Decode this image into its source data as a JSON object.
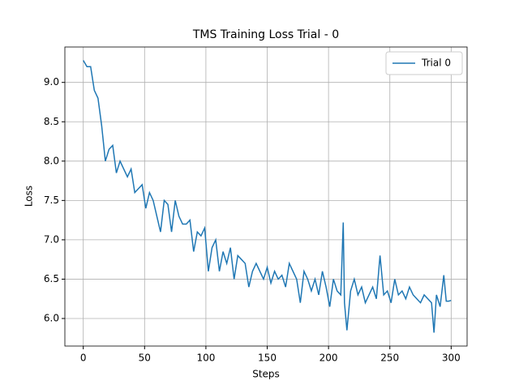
{
  "chart_data": {
    "type": "line",
    "title": "TMS Training Loss Trial - 0",
    "xlabel": "Steps",
    "ylabel": "Loss",
    "x": [
      0,
      3,
      6,
      9,
      12,
      15,
      18,
      21,
      24,
      27,
      30,
      33,
      36,
      39,
      42,
      45,
      48,
      51,
      54,
      57,
      60,
      63,
      66,
      69,
      72,
      75,
      78,
      81,
      84,
      87,
      90,
      93,
      96,
      99,
      102,
      105,
      108,
      111,
      114,
      117,
      120,
      123,
      126,
      129,
      132,
      135,
      138,
      141,
      144,
      147,
      150,
      153,
      156,
      159,
      162,
      165,
      168,
      171,
      174,
      177,
      180,
      183,
      186,
      189,
      192,
      195,
      198,
      201,
      204,
      207,
      210,
      212,
      213,
      215,
      218,
      221,
      224,
      227,
      230,
      233,
      236,
      239,
      242,
      245,
      248,
      251,
      254,
      257,
      260,
      263,
      266,
      269,
      272,
      275,
      278,
      281,
      284,
      286,
      288,
      291,
      294,
      296,
      298,
      300
    ],
    "series": [
      {
        "name": "Trial 0",
        "color": "#1f77b4",
        "values": [
          9.28,
          9.2,
          9.2,
          8.9,
          8.8,
          8.45,
          8.0,
          8.15,
          8.2,
          7.85,
          8.0,
          7.9,
          7.8,
          7.9,
          7.6,
          7.65,
          7.7,
          7.4,
          7.6,
          7.5,
          7.3,
          7.1,
          7.5,
          7.45,
          7.1,
          7.5,
          7.3,
          7.2,
          7.2,
          7.25,
          6.85,
          7.1,
          7.05,
          7.15,
          6.6,
          6.9,
          7.0,
          6.6,
          6.85,
          6.7,
          6.9,
          6.5,
          6.8,
          6.75,
          6.7,
          6.4,
          6.6,
          6.7,
          6.6,
          6.5,
          6.65,
          6.45,
          6.6,
          6.5,
          6.55,
          6.4,
          6.7,
          6.6,
          6.5,
          6.2,
          6.6,
          6.5,
          6.35,
          6.5,
          6.3,
          6.6,
          6.4,
          6.15,
          6.5,
          6.35,
          6.3,
          7.22,
          6.2,
          5.85,
          6.35,
          6.5,
          6.3,
          6.4,
          6.2,
          6.3,
          6.4,
          6.25,
          6.8,
          6.3,
          6.35,
          6.2,
          6.5,
          6.3,
          6.35,
          6.25,
          6.4,
          6.3,
          6.25,
          6.2,
          6.3,
          6.25,
          6.2,
          5.82,
          6.3,
          6.15,
          6.55,
          6.22,
          6.22,
          6.23
        ]
      }
    ],
    "xlim": [
      -15,
      313
    ],
    "ylim": [
      5.65,
      9.45
    ],
    "xticks": [
      0,
      50,
      100,
      150,
      200,
      250,
      300
    ],
    "yticks": [
      {
        "value": 6,
        "label": "6.0"
      },
      6.5,
      {
        "value": 7,
        "label": "7.0"
      },
      7.5,
      {
        "value": 8,
        "label": "8.0"
      },
      8.5,
      {
        "value": 9,
        "label": "9.0"
      }
    ],
    "grid": true,
    "legend": "upper right"
  }
}
